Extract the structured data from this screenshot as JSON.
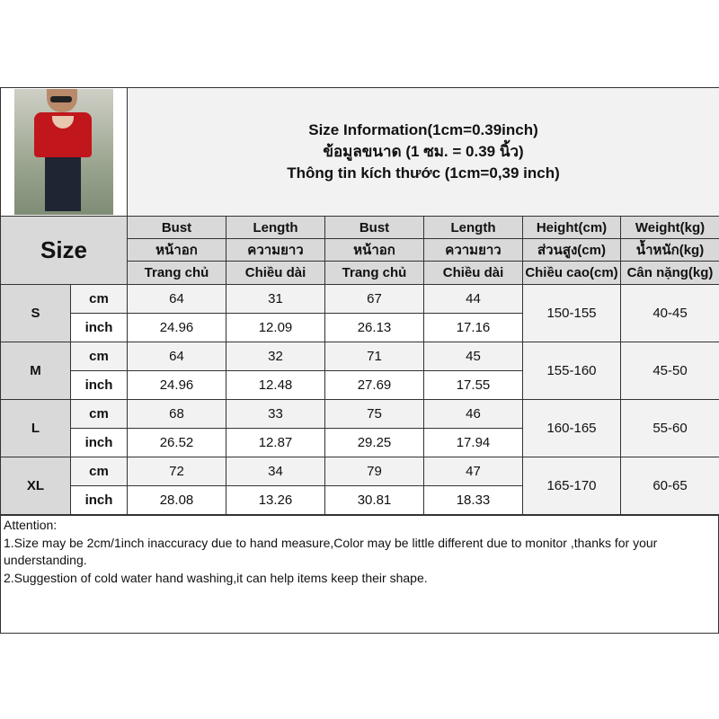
{
  "title": {
    "line1": "Size Information(1cm=0.39inch)",
    "line2": "ข้อมูลขนาด (1 ซม. = 0.39 นิ้ว)",
    "line3": "Thông tin kích thước (1cm=0,39 inch)"
  },
  "header": {
    "size_label": "Size",
    "columns": [
      {
        "en": "Bust",
        "th": "หน้าอก",
        "vi": "Trang chủ"
      },
      {
        "en": "Length",
        "th": "ความยาว",
        "vi": "Chiều dài"
      },
      {
        "en": "Bust",
        "th": "หน้าอก",
        "vi": "Trang chủ"
      },
      {
        "en": "Length",
        "th": "ความยาว",
        "vi": "Chiều dài"
      },
      {
        "en": "Height(cm)",
        "th": "ส่วนสูง(cm)",
        "vi": "Chiều cao(cm)"
      },
      {
        "en": "Weight(kg)",
        "th": "น้ำหนัก(kg)",
        "vi": "Cân nặng(kg)"
      }
    ]
  },
  "units": {
    "cm": "cm",
    "inch": "inch"
  },
  "sizes": [
    {
      "size": "S",
      "cm": [
        "64",
        "31",
        "67",
        "44"
      ],
      "inch": [
        "24.96",
        "12.09",
        "26.13",
        "17.16"
      ],
      "height": "150-155",
      "weight": "40-45"
    },
    {
      "size": "M",
      "cm": [
        "64",
        "32",
        "71",
        "45"
      ],
      "inch": [
        "24.96",
        "12.48",
        "27.69",
        "17.55"
      ],
      "height": "155-160",
      "weight": "45-50"
    },
    {
      "size": "L",
      "cm": [
        "68",
        "33",
        "75",
        "46"
      ],
      "inch": [
        "26.52",
        "12.87",
        "29.25",
        "17.94"
      ],
      "height": "160-165",
      "weight": "55-60"
    },
    {
      "size": "XL",
      "cm": [
        "72",
        "34",
        "79",
        "47"
      ],
      "inch": [
        "28.08",
        "13.26",
        "30.81",
        "18.33"
      ],
      "height": "165-170",
      "weight": "60-65"
    }
  ],
  "notes": {
    "heading": "Attention:",
    "line1": "1.Size may be 2cm/1inch inaccuracy due to hand measure,Color may be little different due to monitor ,thanks for your understanding.",
    "line2": "2.Suggestion of cold water hand washing,it can help items keep their shape."
  },
  "colors": {
    "header_gray": "#d9d9d9",
    "light_gray": "#f2f2f2",
    "border": "#333333"
  }
}
